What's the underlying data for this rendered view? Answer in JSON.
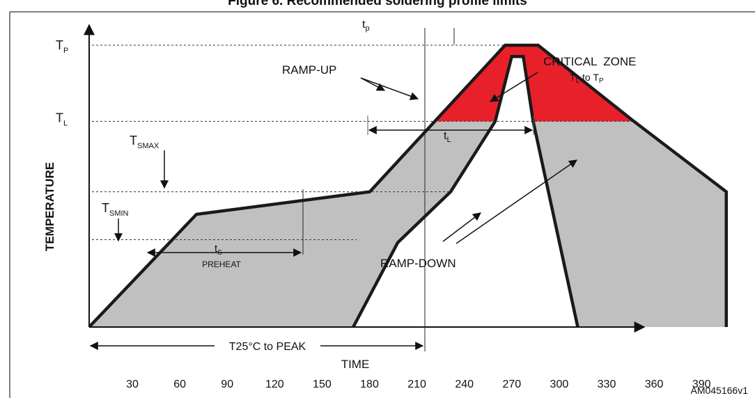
{
  "figure": {
    "caption": "Figure 6. Recommended soldering profile limits",
    "reference_code": "AM045166v1"
  },
  "colors": {
    "outline": "#1a1a1a",
    "envelope_fill": "#c0c0c0",
    "critical_zone_fill": "#e8202a",
    "frame": "#000000"
  },
  "chart_data": {
    "type": "area",
    "xlabel": "TIME",
    "ylabel": "TEMPERATURE",
    "x_ticks": [
      30,
      60,
      90,
      120,
      150,
      180,
      210,
      240,
      270,
      300,
      330,
      360,
      390
    ],
    "xlim": [
      0,
      410
    ],
    "y_scale": "relative (levels are unlabeled symbols)",
    "y_levels": [
      {
        "key": "base",
        "label": "",
        "rel": 0
      },
      {
        "key": "tsmin",
        "label": "TSMIN",
        "main": "T",
        "sub": "SMIN",
        "rel": 0.31
      },
      {
        "key": "tsmax",
        "label": "TSMAX",
        "main": "T",
        "sub": "SMAX",
        "rel": 0.48
      },
      {
        "key": "tl",
        "label": "TL",
        "main": "T",
        "sub": "L",
        "rel": 0.73
      },
      {
        "key": "tp",
        "label": "TP",
        "main": "T",
        "sub": "P",
        "rel": 1.0
      }
    ],
    "series": [
      {
        "role": "upper-limit",
        "points": [
          [
            0,
            0
          ],
          [
            65,
            0.4
          ],
          [
            170,
            0.48
          ],
          [
            252,
            1.0
          ],
          [
            272,
            1.0
          ],
          [
            330,
            0.73
          ],
          [
            386,
            0.48
          ],
          [
            386,
            0
          ]
        ]
      },
      {
        "role": "lower-limit",
        "points": [
          [
            160,
            0
          ],
          [
            187,
            0.3
          ],
          [
            219,
            0.48
          ],
          [
            246,
            0.73
          ],
          [
            256,
            0.96
          ],
          [
            263,
            0.96
          ],
          [
            269,
            0.73
          ],
          [
            296,
            0
          ]
        ]
      }
    ],
    "annotations": {
      "tp": {
        "main": "t",
        "sub": "p"
      },
      "ramp_up": "RAMP-UP",
      "critical_zone": "CRITICAL  ZONE",
      "critical_range": {
        "t1": "T",
        "s1": "L",
        "mid": " to ",
        "t2": "T",
        "s2": "P"
      },
      "tl": {
        "main": "t",
        "sub": "L"
      },
      "ts": {
        "main": "t",
        "sub": "S"
      },
      "preheat": "PREHEAT",
      "ramp_down": "RAMP-DOWN",
      "peak_span": "T25°C to PEAK"
    }
  }
}
